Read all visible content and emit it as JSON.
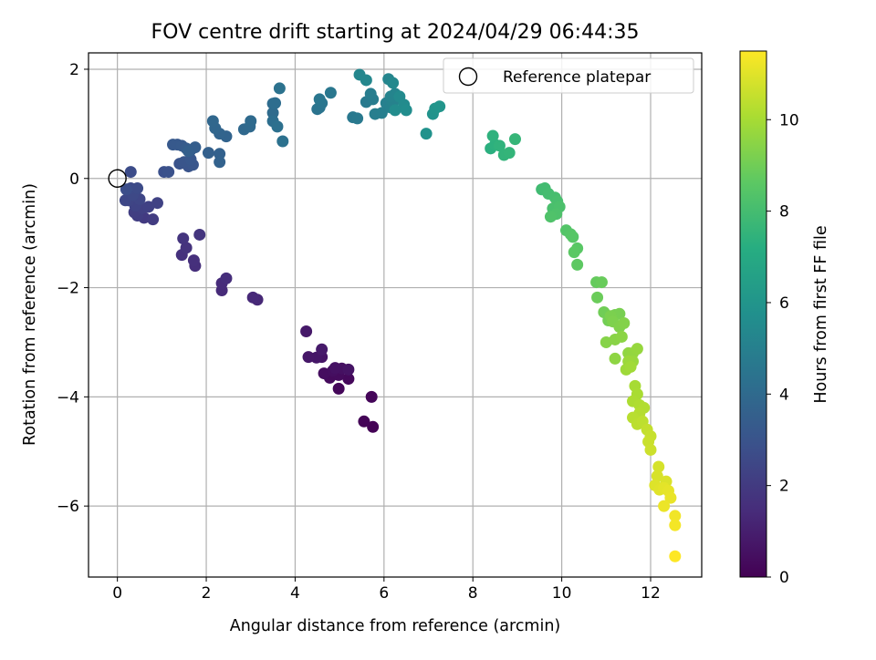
{
  "chart_data": {
    "type": "scatter",
    "title": "FOV centre drift starting at 2024/04/29 06:44:35",
    "xlabel": "Angular distance from reference (arcmin)",
    "ylabel": "Rotation from reference (arcmin)",
    "xlim": [
      -0.65,
      13.15
    ],
    "ylim": [
      -7.3,
      2.3
    ],
    "xticks": [
      0,
      2,
      4,
      6,
      8,
      10,
      12
    ],
    "yticks": [
      -6,
      -4,
      -2,
      0,
      2
    ],
    "grid": true,
    "legend": {
      "placement": "top-right",
      "entries": [
        {
          "label": "Reference platepar",
          "marker": "open-circle",
          "point": [
            0,
            0
          ]
        }
      ]
    },
    "colorbar": {
      "label": "Hours from first FF file",
      "range": [
        0,
        11.5
      ],
      "ticks": [
        0,
        2,
        4,
        6,
        8,
        10
      ],
      "colormap": "viridis"
    },
    "points": [
      [
        5.75,
        -4.55,
        0.05
      ],
      [
        5.55,
        -4.45,
        0.1
      ],
      [
        5.72,
        -4.0,
        0.15
      ],
      [
        4.98,
        -3.85,
        0.2
      ],
      [
        5.2,
        -3.67,
        0.25
      ],
      [
        4.78,
        -3.65,
        0.3
      ],
      [
        4.98,
        -3.6,
        0.35
      ],
      [
        4.65,
        -3.57,
        0.4
      ],
      [
        4.85,
        -3.52,
        0.45
      ],
      [
        5.05,
        -3.48,
        0.5
      ],
      [
        4.9,
        -3.47,
        0.55
      ],
      [
        5.2,
        -3.5,
        0.6
      ],
      [
        4.6,
        -3.27,
        0.65
      ],
      [
        4.48,
        -3.28,
        0.7
      ],
      [
        4.3,
        -3.27,
        0.75
      ],
      [
        4.25,
        -2.8,
        0.8
      ],
      [
        4.6,
        -3.13,
        0.85
      ],
      [
        3.15,
        -2.22,
        1.3
      ],
      [
        3.05,
        -2.18,
        1.35
      ],
      [
        2.35,
        -2.05,
        1.4
      ],
      [
        2.35,
        -1.92,
        1.45
      ],
      [
        2.45,
        -1.83,
        1.5
      ],
      [
        1.75,
        -1.6,
        1.55
      ],
      [
        1.72,
        -1.5,
        1.6
      ],
      [
        1.45,
        -1.4,
        1.65
      ],
      [
        1.55,
        -1.27,
        1.7
      ],
      [
        1.48,
        -1.1,
        1.75
      ],
      [
        1.85,
        -1.03,
        1.8
      ],
      [
        0.6,
        -0.72,
        2.0
      ],
      [
        0.8,
        -0.75,
        2.05
      ],
      [
        0.45,
        -0.68,
        2.1
      ],
      [
        0.38,
        -0.62,
        2.15
      ],
      [
        0.55,
        -0.55,
        2.2
      ],
      [
        0.7,
        -0.52,
        2.25
      ],
      [
        0.9,
        -0.45,
        2.3
      ],
      [
        0.4,
        -0.5,
        2.35
      ],
      [
        0.25,
        -0.4,
        2.4
      ],
      [
        0.5,
        -0.38,
        2.45
      ],
      [
        0.18,
        -0.4,
        2.5
      ],
      [
        0.35,
        -0.3,
        2.55
      ],
      [
        0.3,
        -0.18,
        2.6
      ],
      [
        0.45,
        -0.18,
        2.65
      ],
      [
        0.3,
        0.12,
        2.7
      ],
      [
        0.2,
        -0.2,
        2.75
      ],
      [
        1.05,
        0.12,
        2.85
      ],
      [
        1.15,
        0.12,
        2.9
      ],
      [
        1.4,
        0.27,
        2.95
      ],
      [
        1.6,
        0.22,
        3.0
      ],
      [
        1.5,
        0.3,
        3.05
      ],
      [
        1.7,
        0.25,
        3.1
      ],
      [
        1.65,
        0.35,
        3.15
      ],
      [
        1.35,
        0.62,
        3.2
      ],
      [
        1.25,
        0.62,
        3.25
      ],
      [
        1.45,
        0.6,
        3.3
      ],
      [
        1.55,
        0.55,
        3.35
      ],
      [
        1.65,
        0.52,
        3.4
      ],
      [
        1.75,
        0.57,
        3.45
      ],
      [
        1.6,
        0.5,
        3.5
      ],
      [
        2.05,
        0.47,
        3.55
      ],
      [
        2.3,
        0.45,
        3.6
      ],
      [
        2.3,
        0.3,
        3.65
      ],
      [
        2.45,
        0.77,
        3.7
      ],
      [
        2.3,
        0.82,
        3.75
      ],
      [
        2.2,
        0.92,
        3.8
      ],
      [
        2.15,
        1.05,
        3.85
      ],
      [
        2.85,
        0.9,
        3.9
      ],
      [
        2.98,
        0.95,
        3.95
      ],
      [
        3.0,
        1.05,
        4.0
      ],
      [
        3.5,
        1.2,
        4.05
      ],
      [
        3.5,
        1.37,
        4.1
      ],
      [
        3.55,
        1.38,
        4.15
      ],
      [
        3.5,
        1.05,
        4.2
      ],
      [
        3.6,
        0.95,
        4.25
      ],
      [
        3.72,
        0.68,
        4.3
      ],
      [
        3.65,
        1.65,
        4.35
      ],
      [
        4.5,
        1.27,
        4.4
      ],
      [
        4.55,
        1.3,
        4.45
      ],
      [
        4.6,
        1.38,
        4.5
      ],
      [
        4.55,
        1.45,
        4.55
      ],
      [
        4.8,
        1.57,
        4.6
      ],
      [
        5.3,
        1.12,
        4.65
      ],
      [
        5.4,
        1.1,
        4.7
      ],
      [
        5.6,
        1.4,
        4.75
      ],
      [
        5.75,
        1.45,
        4.8
      ],
      [
        5.7,
        1.55,
        4.85
      ],
      [
        5.8,
        1.18,
        4.9
      ],
      [
        5.95,
        1.2,
        4.95
      ],
      [
        6.05,
        1.38,
        5.0
      ],
      [
        6.15,
        1.3,
        5.05
      ],
      [
        6.2,
        1.4,
        5.1
      ],
      [
        6.15,
        1.5,
        5.15
      ],
      [
        6.25,
        1.55,
        5.2
      ],
      [
        6.1,
        1.82,
        5.25
      ],
      [
        5.45,
        1.9,
        5.3
      ],
      [
        5.6,
        1.8,
        5.35
      ],
      [
        6.2,
        1.75,
        5.4
      ],
      [
        6.35,
        1.5,
        5.45
      ],
      [
        6.45,
        1.35,
        5.5
      ],
      [
        6.25,
        1.25,
        5.55
      ],
      [
        6.5,
        1.25,
        5.6
      ],
      [
        6.95,
        0.82,
        5.85
      ],
      [
        7.1,
        1.18,
        5.9
      ],
      [
        7.15,
        1.28,
        5.95
      ],
      [
        7.25,
        1.32,
        6.0
      ],
      [
        8.4,
        0.55,
        7.3
      ],
      [
        8.5,
        0.62,
        7.35
      ],
      [
        8.45,
        0.78,
        7.4
      ],
      [
        8.6,
        0.6,
        7.45
      ],
      [
        8.7,
        0.43,
        7.5
      ],
      [
        8.82,
        0.47,
        7.55
      ],
      [
        8.95,
        0.72,
        7.6
      ],
      [
        9.55,
        -0.2,
        7.9
      ],
      [
        9.62,
        -0.18,
        7.95
      ],
      [
        9.7,
        -0.28,
        8.0
      ],
      [
        9.85,
        -0.35,
        8.05
      ],
      [
        9.9,
        -0.42,
        8.1
      ],
      [
        9.8,
        -0.55,
        8.15
      ],
      [
        9.95,
        -0.52,
        8.2
      ],
      [
        9.88,
        -0.65,
        8.25
      ],
      [
        9.75,
        -0.7,
        8.3
      ],
      [
        10.1,
        -0.95,
        8.4
      ],
      [
        10.2,
        -1.02,
        8.45
      ],
      [
        10.25,
        -1.07,
        8.5
      ],
      [
        10.35,
        -1.28,
        8.55
      ],
      [
        10.28,
        -1.35,
        8.6
      ],
      [
        10.35,
        -1.58,
        8.65
      ],
      [
        10.78,
        -1.9,
        8.8
      ],
      [
        10.9,
        -1.9,
        8.85
      ],
      [
        10.8,
        -2.18,
        8.9
      ],
      [
        10.95,
        -2.45,
        9.0
      ],
      [
        11.05,
        -2.6,
        9.05
      ],
      [
        11.2,
        -2.5,
        9.1
      ],
      [
        11.3,
        -2.48,
        9.15
      ],
      [
        11.1,
        -2.52,
        9.2
      ],
      [
        11.15,
        -2.62,
        9.25
      ],
      [
        11.3,
        -2.72,
        9.3
      ],
      [
        11.4,
        -2.65,
        9.35
      ],
      [
        11.0,
        -3.0,
        9.4
      ],
      [
        11.2,
        -2.95,
        9.45
      ],
      [
        11.35,
        -2.9,
        9.5
      ],
      [
        11.2,
        -3.3,
        9.55
      ],
      [
        11.5,
        -3.2,
        9.6
      ],
      [
        11.6,
        -3.2,
        9.65
      ],
      [
        11.7,
        -3.12,
        9.7
      ],
      [
        11.6,
        -3.35,
        9.75
      ],
      [
        11.5,
        -3.35,
        9.8
      ],
      [
        11.45,
        -3.5,
        9.85
      ],
      [
        11.55,
        -3.45,
        9.9
      ],
      [
        11.65,
        -3.8,
        10.0
      ],
      [
        11.7,
        -3.95,
        10.05
      ],
      [
        11.6,
        -4.08,
        10.1
      ],
      [
        11.75,
        -4.15,
        10.15
      ],
      [
        11.85,
        -4.2,
        10.2
      ],
      [
        11.75,
        -4.3,
        10.25
      ],
      [
        11.6,
        -4.38,
        10.3
      ],
      [
        11.7,
        -4.5,
        10.35
      ],
      [
        11.82,
        -4.45,
        10.4
      ],
      [
        11.92,
        -4.6,
        10.5
      ],
      [
        12.0,
        -4.72,
        10.55
      ],
      [
        11.95,
        -4.82,
        10.6
      ],
      [
        12.0,
        -4.97,
        10.65
      ],
      [
        12.18,
        -5.28,
        10.8
      ],
      [
        12.15,
        -5.45,
        10.85
      ],
      [
        12.35,
        -5.55,
        10.9
      ],
      [
        12.1,
        -5.62,
        10.95
      ],
      [
        12.2,
        -5.7,
        11.0
      ],
      [
        12.3,
        -5.67,
        11.05
      ],
      [
        12.4,
        -5.72,
        11.1
      ],
      [
        12.45,
        -5.85,
        11.15
      ],
      [
        12.3,
        -6.0,
        11.2
      ],
      [
        12.55,
        -6.18,
        11.3
      ],
      [
        12.55,
        -6.35,
        11.35
      ],
      [
        12.55,
        -6.92,
        11.5
      ]
    ]
  }
}
